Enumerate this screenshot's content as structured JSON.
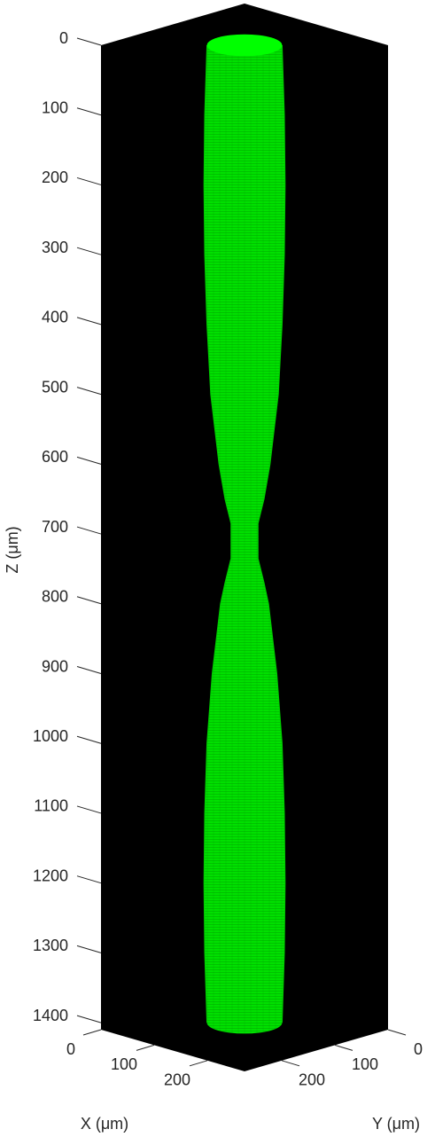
{
  "chart_data": {
    "type": "surface",
    "xlabel": "X (μm)",
    "ylabel": "Y (μm)",
    "zlabel": "Z (μm)",
    "xlim": [
      0,
      270
    ],
    "ylim": [
      0,
      270
    ],
    "zlim": [
      0,
      1410
    ],
    "xticks": [
      0,
      100,
      200
    ],
    "yticks": [
      0,
      100,
      200
    ],
    "zticks": [
      0,
      100,
      200,
      300,
      400,
      500,
      600,
      700,
      800,
      900,
      1000,
      1100,
      1200,
      1300,
      1400
    ],
    "z": [
      0,
      100,
      200,
      300,
      400,
      500,
      600,
      650,
      685,
      735,
      770,
      800,
      900,
      1000,
      1100,
      1200,
      1300,
      1400
    ],
    "radius": [
      50,
      53,
      54,
      53,
      50,
      45,
      34,
      26,
      18,
      18,
      26,
      32,
      43,
      50,
      53,
      54,
      53,
      50
    ],
    "color": "#00e000",
    "cap_color": "#00ff00",
    "background": "#000000"
  }
}
